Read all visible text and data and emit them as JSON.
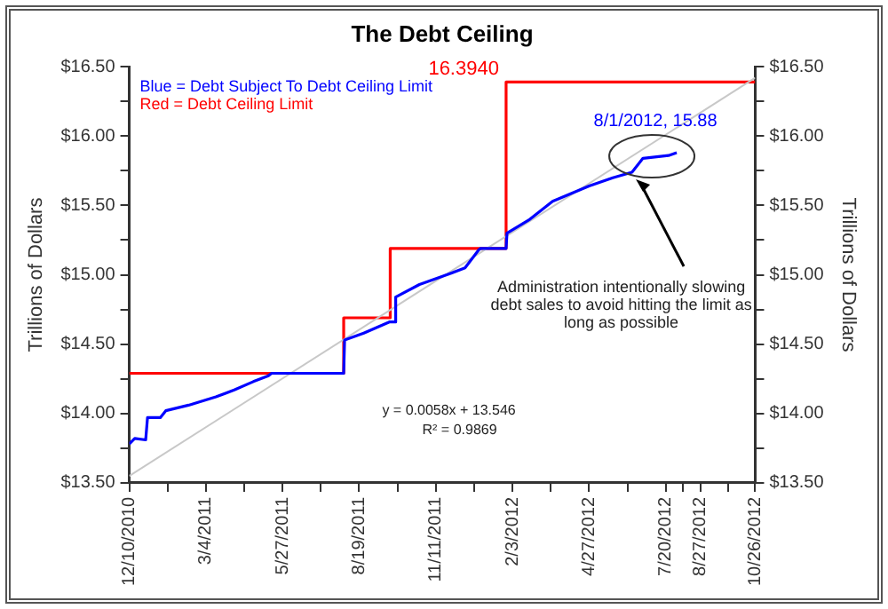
{
  "chart_data": {
    "type": "line",
    "title": "The Debt Ceiling",
    "ylabel": "Trillions of Dollars",
    "y2label": "Trillions of Dollars",
    "series": [
      {
        "type": "step",
        "color": "#ff0000",
        "x": [
          "2010-12-10",
          "2011-08-02",
          "2011-09-22",
          "2012-01-27",
          "2012-10-26"
        ],
        "values": [
          14.29,
          14.69,
          15.19,
          16.39,
          16.39
        ]
      },
      {
        "type": "line",
        "color": "#c8c8c8",
        "x": [
          "2010-12-10",
          "2012-10-26"
        ],
        "values": [
          13.55,
          16.42
        ]
      },
      {
        "type": "line",
        "color": "#0000ff",
        "x": [
          "2010-12-10",
          "2010-12-16",
          "2010-12-28",
          "2010-12-30",
          "2011-01-13",
          "2011-01-19",
          "2011-02-13",
          "2011-03-15",
          "2011-04-04",
          "2011-04-25",
          "2011-05-11",
          "2011-05-15",
          "2011-08-02",
          "2011-08-03",
          "2011-08-24",
          "2011-09-21",
          "2011-09-27",
          "2011-09-28",
          "2011-10-24",
          "2011-11-23",
          "2011-12-13",
          "2011-12-28",
          "2011-12-30",
          "2012-01-27",
          "2012-01-28",
          "2012-02-22",
          "2012-03-18",
          "2012-04-27",
          "2012-05-23",
          "2012-06-13",
          "2012-06-25",
          "2012-07-23",
          "2012-08-01"
        ],
        "values": [
          13.78,
          13.82,
          13.81,
          13.97,
          13.97,
          14.02,
          14.06,
          14.12,
          14.17,
          14.23,
          14.27,
          14.29,
          14.29,
          14.53,
          14.58,
          14.66,
          14.66,
          14.84,
          14.93,
          15.0,
          15.05,
          15.18,
          15.19,
          15.19,
          15.3,
          15.4,
          15.53,
          15.64,
          15.7,
          15.74,
          15.84,
          15.86,
          15.88
        ]
      }
    ],
    "xlim": [
      "2010-12-10",
      "2012-10-26"
    ],
    "xticks": [
      {
        "value": "2010-12-10",
        "label": "12/10/2010"
      },
      {
        "value": "2011-01-21",
        "label": null
      },
      {
        "value": "2011-03-04",
        "label": "3/4/2011"
      },
      {
        "value": "2011-04-15",
        "label": null
      },
      {
        "value": "2011-05-27",
        "label": "5/27/2011"
      },
      {
        "value": "2011-07-08",
        "label": null
      },
      {
        "value": "2011-08-19",
        "label": "8/19/2011"
      },
      {
        "value": "2011-09-30",
        "label": null
      },
      {
        "value": "2011-11-11",
        "label": "11/11/2011"
      },
      {
        "value": "2011-12-23",
        "label": null
      },
      {
        "value": "2012-02-03",
        "label": "2/3/2012"
      },
      {
        "value": "2012-03-16",
        "label": null
      },
      {
        "value": "2012-04-27",
        "label": "4/27/2012"
      },
      {
        "value": "2012-06-08",
        "label": null
      },
      {
        "value": "2012-07-20",
        "label": "7/20/2012"
      },
      {
        "value": "2012-08-08",
        "label": null
      },
      {
        "value": "2012-08-27",
        "label": "8/27/2012"
      },
      {
        "value": "2012-09-26",
        "label": null
      },
      {
        "value": "2012-10-26",
        "label": "10/26/2012"
      }
    ],
    "ylim": [
      13.5,
      16.5
    ],
    "yticks": [
      {
        "value": 13.5,
        "label": "$13.50"
      },
      {
        "value": 13.75,
        "label": null
      },
      {
        "value": 14,
        "label": "$14.00"
      },
      {
        "value": 14.25,
        "label": null
      },
      {
        "value": 14.5,
        "label": "$14.50"
      },
      {
        "value": 14.75,
        "label": null
      },
      {
        "value": 15,
        "label": "$15.00"
      },
      {
        "value": 15.25,
        "label": null
      },
      {
        "value": 15.5,
        "label": "$15.50"
      },
      {
        "value": 15.75,
        "label": null
      },
      {
        "value": 16,
        "label": "$16.00"
      },
      {
        "value": 16.25,
        "label": null
      },
      {
        "value": 16.5,
        "label": "$16.50"
      }
    ],
    "y2lim": [
      13.5,
      16.5
    ],
    "y2ticks": [
      {
        "value": 13.5,
        "label": "$13.50"
      },
      {
        "value": 13.75,
        "label": null
      },
      {
        "value": 14,
        "label": "$14.00"
      },
      {
        "value": 14.25,
        "label": null
      },
      {
        "value": 14.5,
        "label": "$14.50"
      },
      {
        "value": 14.75,
        "label": null
      },
      {
        "value": 15,
        "label": "$15.00"
      },
      {
        "value": 15.25,
        "label": null
      },
      {
        "value": 15.5,
        "label": "$15.50"
      },
      {
        "value": 15.75,
        "label": null
      },
      {
        "value": 16,
        "label": "$16.00"
      },
      {
        "value": 16.25,
        "label": null
      },
      {
        "value": 16.5,
        "label": "$16.50"
      }
    ],
    "grid": false,
    "legend": false,
    "marker": "none",
    "line_style": "solid",
    "annotations": [
      "Blue = Debt Subject To Debt Ceiling Limit",
      "Red = Debt Ceiling Limit",
      {
        "text": "16.3940",
        "x": "2012-01-27",
        "y": 16.394
      },
      {
        "text": "8/1/2012, 15.88",
        "x": "2012-08-01",
        "y": 15.88
      },
      "y = 0.0058x + 13.546",
      "R² = 0.9869",
      "Administration intentionally slowing debt sales to avoid hitting the limit as long as possible"
    ]
  }
}
